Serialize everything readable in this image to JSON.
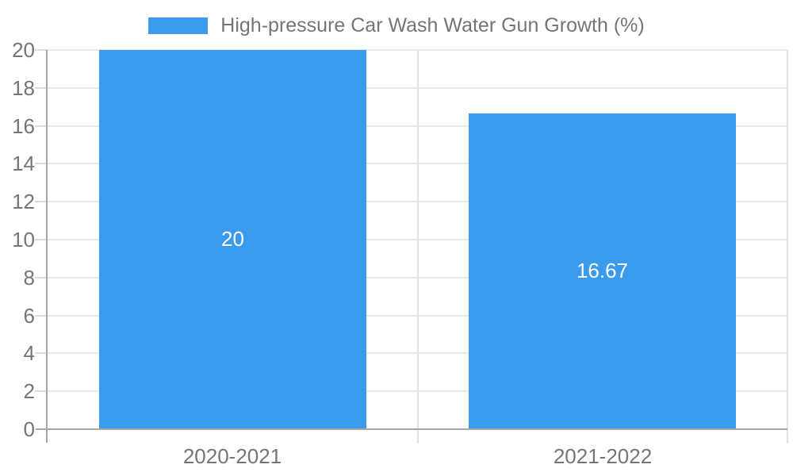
{
  "chart_data": {
    "type": "bar",
    "title": "",
    "xlabel": "",
    "ylabel": "",
    "categories": [
      "2020-2021",
      "2021-2022"
    ],
    "series": [
      {
        "name": "High-pressure Car Wash Water Gun Growth (%)",
        "values": [
          20,
          16.67
        ],
        "value_labels": [
          "20",
          "16.67"
        ],
        "color": "#3A9AEC"
      }
    ],
    "ylim": [
      0,
      20
    ],
    "yticks": [
      "0",
      "2",
      "4",
      "6",
      "8",
      "10",
      "12",
      "14",
      "16",
      "18",
      "20"
    ],
    "grid": true,
    "legend_position": "top"
  },
  "colors": {
    "bar": "#3A9AEC",
    "grid_horizontal": "#E8E8E8",
    "grid_vertical": "#E3E3E3",
    "axis": "#A6A6A6",
    "tick": "#DDDDDD",
    "text": "#757575",
    "bar_label": "#FFFFFF",
    "background": "#FFFFFF"
  }
}
